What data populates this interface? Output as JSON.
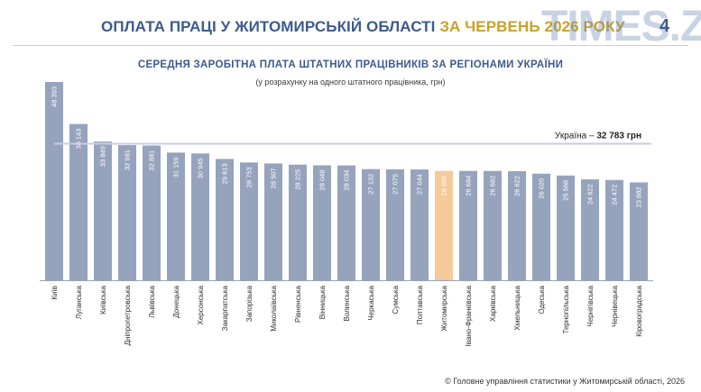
{
  "header": {
    "title_main": "ОПЛАТА ПРАЦІ У ЖИТОМИРСЬКІЙ ОБЛАСТІ ",
    "title_accent": "ЗА ЧЕРВЕНЬ 2026 РОКУ",
    "page_number": "4",
    "watermark": "TIMES.ZT"
  },
  "colors": {
    "bar": "#96a3bd",
    "highlight_bar": "#f5c99a",
    "title": "#3d5a8f",
    "accent": "#c9a227",
    "average_line": "#c9cbe6"
  },
  "chart_data": {
    "type": "bar",
    "title": "СЕРЕДНЯ ЗАРОБІТНА ПЛАТА ШТАТНИХ ПРАЦІВНИКІВ ЗА РЕГІОНАМИ УКРАЇНИ",
    "subtitle": "(у розрахунку на одного штатного працівника, грн)",
    "categories": [
      "Київ",
      "Луганська",
      "Київська",
      "Дніпропетровська",
      "Львівська",
      "Донецька",
      "Херсонська",
      "Закарпатська",
      "Запорізька",
      "Миколаївська",
      "Рівненська",
      "Вінницька",
      "Волинська",
      "Черкаська",
      "Сумська",
      "Полтавська",
      "Житомирська",
      "Івано-Франківська",
      "Харківська",
      "Хмельницька",
      "Одеська",
      "Тернопільська",
      "Чернігівська",
      "Чернівецька",
      "Кіровоградська"
    ],
    "values": [
      48393,
      38143,
      33849,
      32981,
      32881,
      31159,
      30945,
      29613,
      28753,
      28507,
      28225,
      28048,
      28034,
      27132,
      27075,
      27044,
      26695,
      26684,
      26682,
      26622,
      26020,
      25568,
      24622,
      24472,
      23882
    ],
    "value_labels": [
      "48 393",
      "38 143",
      "33 849",
      "32 981",
      "32 881",
      "31 159",
      "30 945",
      "29 613",
      "28 753",
      "28 507",
      "28 225",
      "28 048",
      "28 034",
      "27 132",
      "27 075",
      "27 044",
      "26 695",
      "26 684",
      "26 682",
      "26 622",
      "26 020",
      "25 568",
      "24 622",
      "24 472",
      "23 882"
    ],
    "highlight": "Житомирська",
    "reference_line": {
      "value": 32783,
      "label_prefix": "Україна – ",
      "label_value": "32 783 грн"
    },
    "ylim": [
      0,
      48393
    ],
    "grid": false,
    "legend": "none"
  },
  "footer": {
    "source": "© Головне управління статистики у Житомирській області, 2026"
  }
}
